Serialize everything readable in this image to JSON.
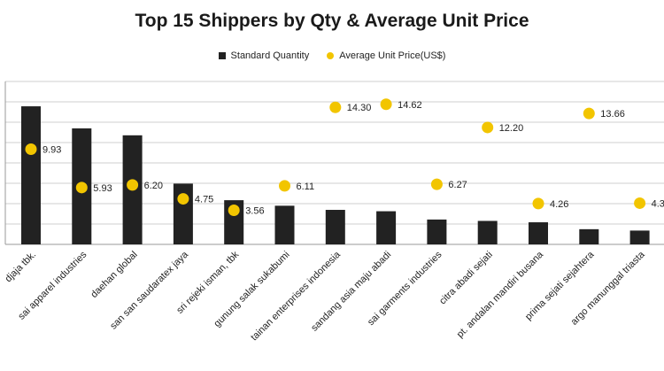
{
  "chart_data": {
    "type": "bar",
    "title": "Top 15 Shippers by Qty & Average Unit Price",
    "legend_position": "top",
    "grid": true,
    "categories": [
      "djaja tbk.",
      "sai apparel industries",
      "daehan global",
      "san san saudaratex jaya",
      "sri rejeki isman, tbk",
      "gunung salak sukabumi",
      "tainan enterprises indonesia",
      "sandang asia maju abadi",
      "sai garments industries",
      "citra abadi sejati",
      "pt. andalan mandiri busana",
      "prima sejati sejahtera",
      "argo manunggal triasta"
    ],
    "series": [
      {
        "name": "Standard Quantity",
        "kind": "bar",
        "color": "#222222",
        "values": [
          100,
          84,
          79,
          44,
          32,
          28,
          25,
          24,
          18,
          17,
          16,
          11,
          10
        ]
      },
      {
        "name": "Average Unit Price(US$)",
        "kind": "scatter",
        "color": "#f2c500",
        "values": [
          9.93,
          5.93,
          6.2,
          4.75,
          3.56,
          6.11,
          14.3,
          14.62,
          6.27,
          12.2,
          4.26,
          13.66,
          4.3
        ],
        "labels": [
          "9.93",
          "5.93",
          "6.20",
          "4.75",
          "3.56",
          "6.11",
          "14.30",
          "14.62",
          "6.27",
          "12.20",
          "4.26",
          "13.66",
          "4.3"
        ]
      }
    ],
    "ylim": [
      0,
      118
    ],
    "y2lim": [
      0,
      17
    ]
  }
}
